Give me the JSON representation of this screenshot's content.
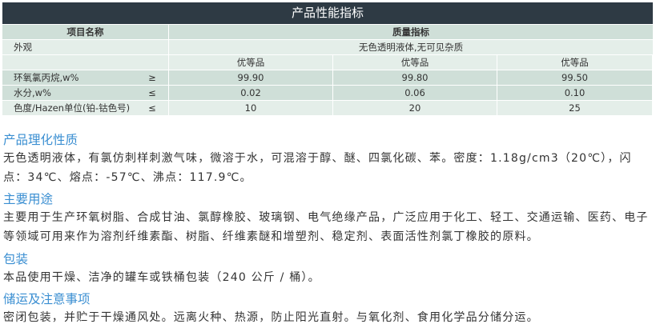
{
  "table": {
    "title": "产品性能指标",
    "header": {
      "item": "项目名称",
      "quality": "质量指标"
    },
    "appearance": {
      "label": "外观",
      "value": "无色透明液体,无可见杂质"
    },
    "grades": [
      "优等品",
      "优等品",
      "优等品"
    ],
    "rows": [
      {
        "label": "环氧氯丙烷,w%",
        "op": "≥",
        "values": [
          "99.90",
          "99.80",
          "99.50"
        ]
      },
      {
        "label": "水分,w%",
        "op": "≤",
        "values": [
          "0.02",
          "0.06",
          "0.10"
        ]
      },
      {
        "label": "色度/Hazen单位(铂-钴色号)",
        "op": "≤",
        "values": [
          "10",
          "20",
          "25"
        ]
      }
    ]
  },
  "sections": [
    {
      "heading": "产品理化性质",
      "body": "无色透明液体，有氯仿刺样刺激气味，微溶于水，可混溶于醇、醚、四氯化碳、苯。密度：1.18g/cm3（20℃），闪点：34℃、熔点：-57℃、沸点：117.9℃。"
    },
    {
      "heading": "主要用途",
      "body": "主要用于生产环氧树脂、合成甘油、氯醇橡胶、玻璃钢、电气绝缘产品，广泛应用于化工、轻工、交通运输、医药、电子等领域可用来作为溶剂纤维素酯、树脂、纤维素醚和增塑剂、稳定剂、表面活性剂氯丁橡胶的原料。"
    },
    {
      "heading": "包装",
      "body": "本品使用干燥、洁净的罐车或铁桶包装（240 公斤 / 桶）。"
    },
    {
      "heading": "储运及注意事项",
      "body": "密闭包装，并贮于干燥通风处。远离火种、热源，防止阳光直射。与氧化剂、食用化学品分储分运。"
    }
  ]
}
